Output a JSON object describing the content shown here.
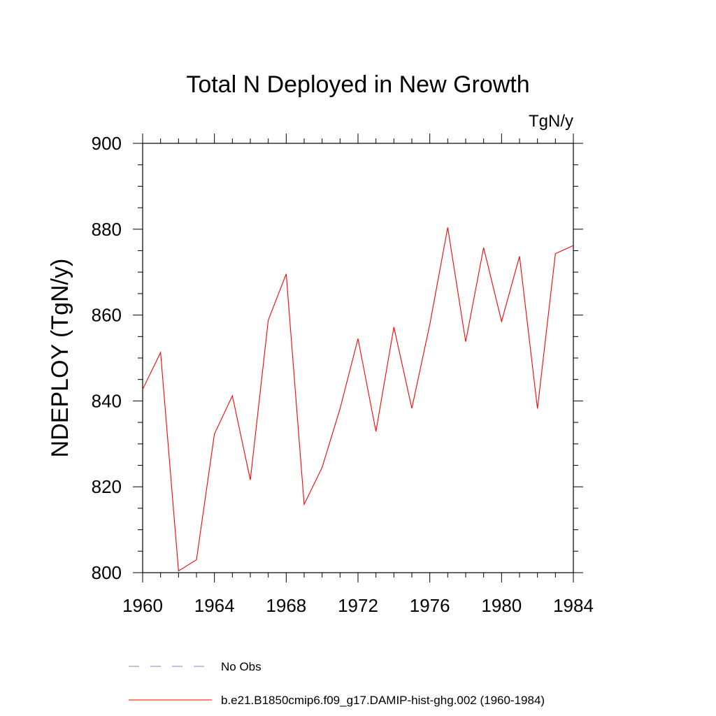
{
  "chart_data": {
    "type": "line",
    "title": "Total N Deployed in New Growth",
    "units_label": "TgN/y",
    "xlabel": "",
    "ylabel": "NDEPLOY  (TgN/y)",
    "xlim": [
      1960,
      1984
    ],
    "ylim": [
      800,
      900
    ],
    "x_ticks": [
      1960,
      1964,
      1968,
      1972,
      1976,
      1980,
      1984
    ],
    "y_ticks": [
      800,
      820,
      840,
      860,
      880,
      900
    ],
    "x_tick_labels": [
      "1960",
      "1964",
      "1968",
      "1972",
      "1976",
      "1980",
      "1984"
    ],
    "y_tick_labels": [
      "800",
      "820",
      "840",
      "860",
      "880",
      "900"
    ],
    "x_minor_step": 1,
    "y_minor_step": 5,
    "grid": false,
    "legend_position": "bottom",
    "series": [
      {
        "name": "No Obs",
        "color": "#8080c0",
        "dash": "dashed",
        "x": [],
        "values": []
      },
      {
        "name": "b.e21.B1850cmip6.f09_g17.DAMIP-hist-ghg.002 (1960-1984)",
        "color": "#ff0000",
        "dash": "solid",
        "x": [
          1960,
          1961,
          1962,
          1963,
          1964,
          1965,
          1966,
          1967,
          1968,
          1969,
          1970,
          1971,
          1972,
          1973,
          1974,
          1975,
          1976,
          1977,
          1978,
          1979,
          1980,
          1981,
          1982,
          1983,
          1984
        ],
        "values": [
          842.7,
          851.3,
          800.4,
          803.0,
          832.3,
          841.2,
          821.6,
          858.8,
          869.6,
          815.9,
          824.5,
          838.2,
          854.5,
          832.9,
          857.2,
          838.3,
          857.8,
          880.4,
          853.8,
          875.7,
          858.5,
          873.7,
          838.2,
          874.3,
          876.2
        ]
      }
    ]
  }
}
